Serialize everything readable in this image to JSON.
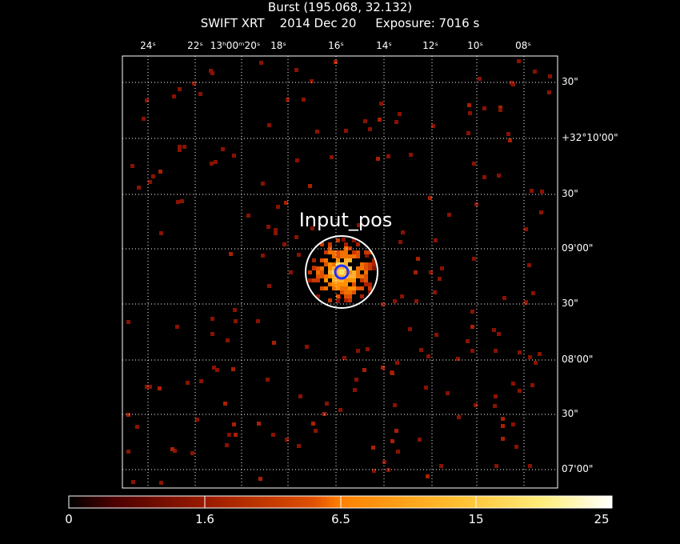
{
  "header": {
    "title": "Burst (195.068, 32.132)",
    "subtitle": "SWIFT XRT    2014 Dec 20     Exposure: 7016 s"
  },
  "ra_ticks": [
    "24ˢ",
    "22ˢ",
    "13ʰ00ᵐ20ˢ",
    "18ˢ",
    "16ˢ",
    "14ˢ",
    "12ˢ",
    "10ˢ",
    "08ˢ"
  ],
  "dec_ticks": [
    "30\"",
    "+32°10'00\"",
    "30\"",
    "09'00\"",
    "30\"",
    "08'00\"",
    "30\"",
    "07'00\""
  ],
  "source": {
    "label": "Input_pos"
  },
  "colorbar": {
    "labels": [
      "0",
      "1.6",
      "6.5",
      "15",
      "25"
    ]
  },
  "colors": {
    "accent_circle": "#ffffff",
    "blue_marker": "#2030ff",
    "scale_low": "#5a0000",
    "scale_high": "#ffffff"
  }
}
